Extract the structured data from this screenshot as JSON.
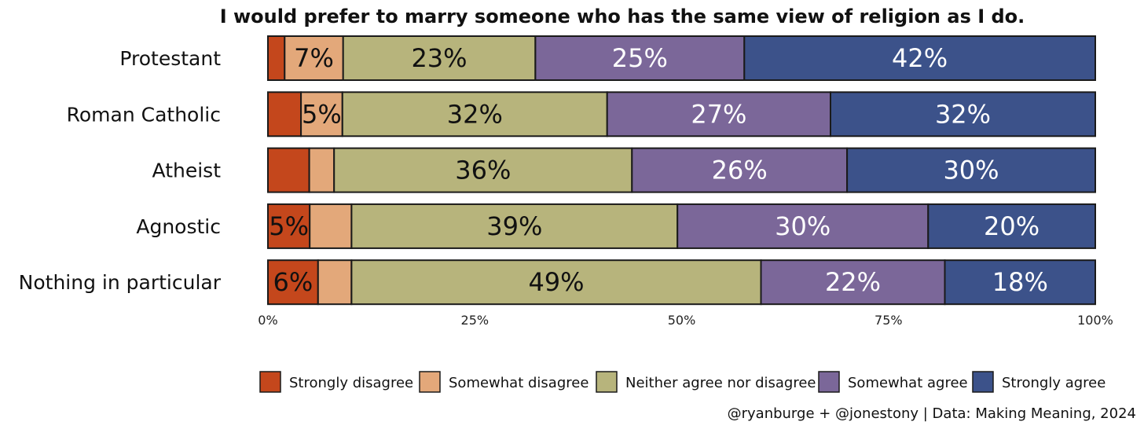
{
  "chart_data": {
    "type": "bar",
    "orientation": "horizontal",
    "stacked": true,
    "title": "I would prefer to marry someone who has the same view of religion as I do.",
    "categories": [
      "Protestant",
      "Roman Catholic",
      "Atheist",
      "Agnostic",
      "Nothing in particular"
    ],
    "series": [
      {
        "name": "Strongly disagree",
        "color": "#c4471c",
        "values": [
          2,
          4,
          5,
          5,
          6
        ],
        "labels": [
          "",
          "",
          "",
          "5%",
          "6%"
        ]
      },
      {
        "name": "Somewhat disagree",
        "color": "#e3a87a",
        "values": [
          7,
          5,
          3,
          5,
          4
        ],
        "labels": [
          "7%",
          "5%",
          "",
          "",
          ""
        ]
      },
      {
        "name": "Neither agree nor disagree",
        "color": "#b7b47c",
        "values": [
          23,
          32,
          36,
          39,
          49
        ],
        "labels": [
          "23%",
          "32%",
          "36%",
          "39%",
          "49%"
        ]
      },
      {
        "name": "Somewhat agree",
        "color": "#7b6799",
        "values": [
          25,
          27,
          26,
          30,
          22
        ],
        "labels": [
          "25%",
          "27%",
          "26%",
          "30%",
          "22%"
        ]
      },
      {
        "name": "Strongly agree",
        "color": "#3c528a",
        "values": [
          42,
          32,
          30,
          20,
          18
        ],
        "labels": [
          "42%",
          "32%",
          "30%",
          "20%",
          "18%"
        ]
      }
    ],
    "xlim": [
      0,
      100
    ],
    "xticks": [
      "0%",
      "25%",
      "50%",
      "75%",
      "100%"
    ],
    "xlabel": "",
    "ylabel": "",
    "grid": false,
    "legend_position": "bottom",
    "caption": "@ryanburge + @jonestony | Data: Making Meaning, 2024"
  }
}
